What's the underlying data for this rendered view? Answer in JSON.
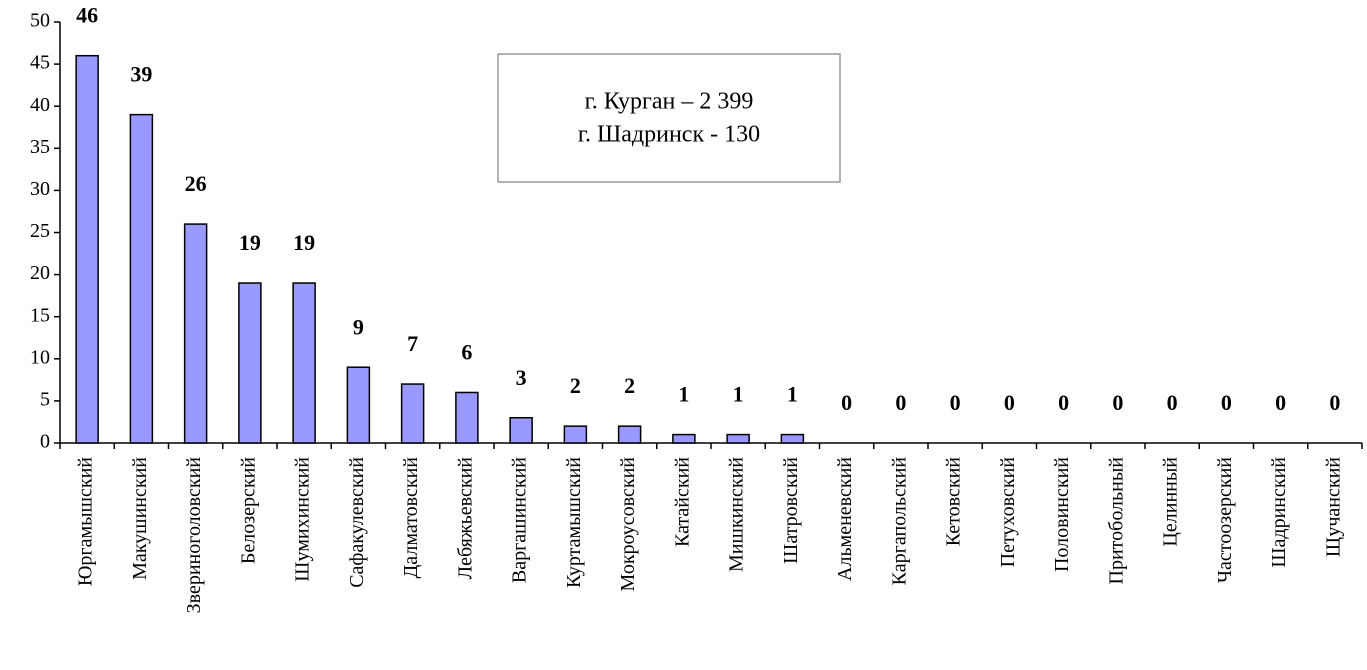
{
  "chart_data": {
    "type": "bar",
    "categories": [
      "Юргамышский",
      "Макушинский",
      "Звериноголовский",
      "Белозерский",
      "Шумихинский",
      "Сафакулевский",
      "Далматовский",
      "Лебяжьевский",
      "Варгашинский",
      "Куртамышский",
      "Мокроусовский",
      "Катайский",
      "Мишкинский",
      "Шатровский",
      "Альменевский",
      "Каргапольский",
      "Кетовский",
      "Петуховский",
      "Половинский",
      "Притобольный",
      "Целинный",
      "Частоозерский",
      "Шадринский",
      "Щучанский"
    ],
    "values": [
      46,
      39,
      26,
      19,
      19,
      9,
      7,
      6,
      3,
      2,
      2,
      1,
      1,
      1,
      0,
      0,
      0,
      0,
      0,
      0,
      0,
      0,
      0,
      0
    ],
    "color": "#9999ff",
    "ylim": [
      0,
      50
    ],
    "yticks": [
      0,
      5,
      10,
      15,
      20,
      25,
      30,
      35,
      40,
      45,
      50
    ],
    "annotations": [
      "г. Курган – 2 399",
      "г. Шадринск - 130"
    ]
  }
}
